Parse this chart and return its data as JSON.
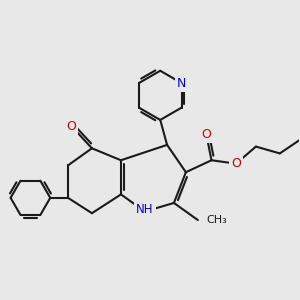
{
  "bg_color": "#e8e8e8",
  "bond_color": "#1a1a1a",
  "bond_width": 1.5,
  "atom_colors": {
    "N": "#0000cc",
    "O": "#cc0000",
    "C": "#1a1a1a"
  },
  "font_size": 9.0,
  "fig_size": [
    3.0,
    3.0
  ],
  "dpi": 100
}
